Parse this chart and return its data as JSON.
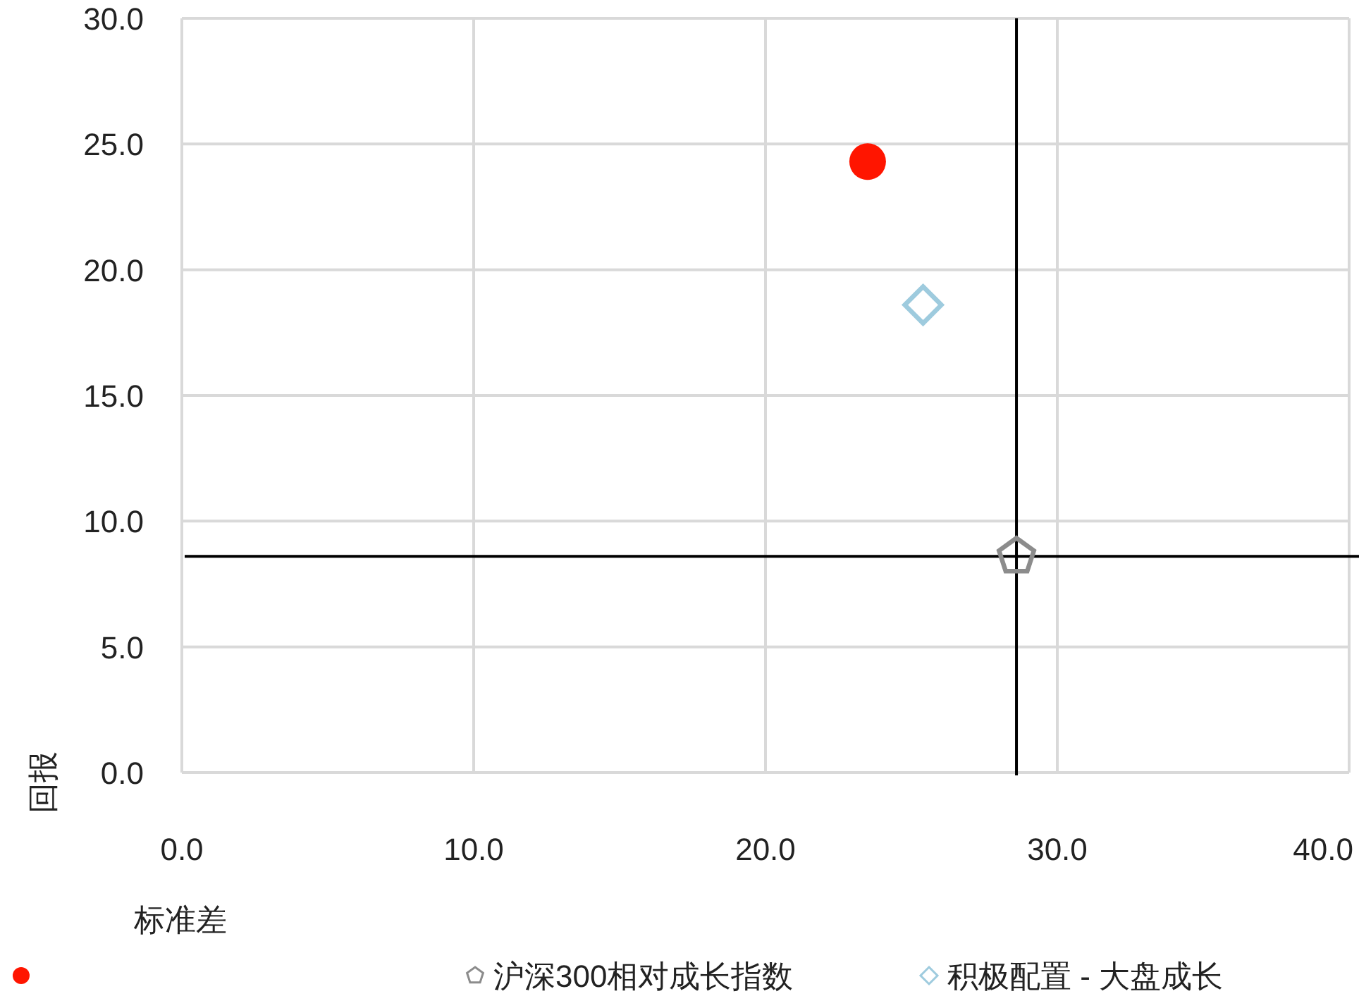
{
  "chart_data": {
    "type": "scatter",
    "xlabel": "标准差",
    "ylabel": "回报",
    "xlim": [
      0,
      40
    ],
    "ylim": [
      0,
      30
    ],
    "xticks": [
      {
        "value": 0,
        "label": "0.0"
      },
      {
        "value": 10,
        "label": "10.0"
      },
      {
        "value": 20,
        "label": "20.0"
      },
      {
        "value": 30,
        "label": "30.0"
      },
      {
        "value": 40,
        "label": "40.0"
      }
    ],
    "yticks": [
      {
        "value": 0,
        "label": "0.0"
      },
      {
        "value": 5,
        "label": "5.0"
      },
      {
        "value": 10,
        "label": "10.0"
      },
      {
        "value": 15,
        "label": "15.0"
      },
      {
        "value": 20,
        "label": "20.0"
      },
      {
        "value": 25,
        "label": "25.0"
      },
      {
        "value": 30,
        "label": "30.0"
      }
    ],
    "grid": true,
    "legend": "bottom",
    "series": [
      {
        "color": "#ff1500",
        "marker": "circle",
        "x": [
          23.5
        ],
        "values": [
          24.3
        ]
      },
      {
        "name": "沪深300相对成长指数",
        "color": "#8c8c8c",
        "x": [
          28.6
        ],
        "values": [
          8.6
        ]
      },
      {
        "name": "积极配置 - 大盘成长",
        "color": "#9ecbde",
        "marker": "diamond",
        "x": [
          25.4
        ],
        "values": [
          18.6
        ]
      }
    ],
    "ref_lines": [
      {
        "axis": "x",
        "value": 28.6
      },
      {
        "axis": "y",
        "value": 8.6
      }
    ]
  }
}
